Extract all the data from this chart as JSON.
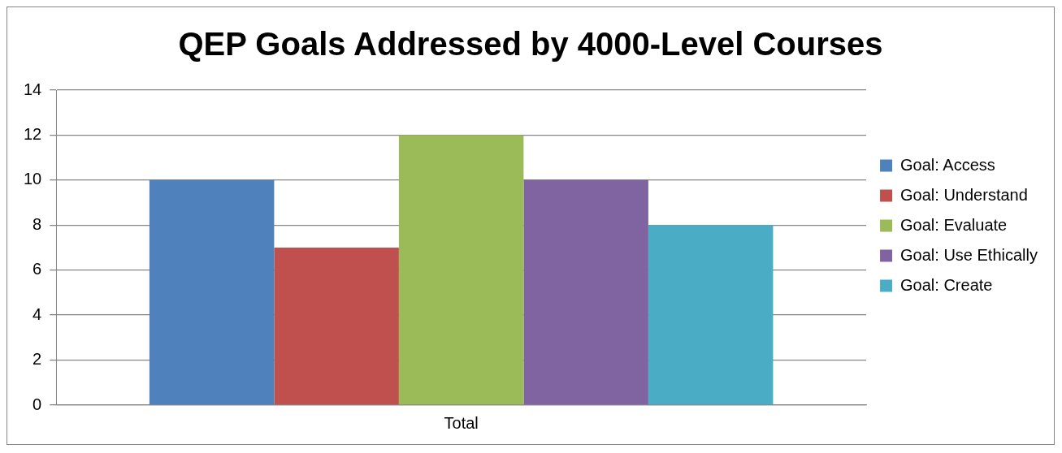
{
  "chart_data": {
    "type": "bar",
    "title": "QEP Goals Addressed by 4000-Level Courses",
    "categories": [
      "Total"
    ],
    "series": [
      {
        "name": "Goal: Access",
        "color": "#4f81bd",
        "values": [
          10
        ]
      },
      {
        "name": "Goal: Understand",
        "color": "#c0504d",
        "values": [
          7
        ]
      },
      {
        "name": "Goal: Evaluate",
        "color": "#9bbb59",
        "values": [
          12
        ]
      },
      {
        "name": "Goal: Use Ethically",
        "color": "#8064a2",
        "values": [
          10
        ]
      },
      {
        "name": "Goal: Create",
        "color": "#4bacc6",
        "values": [
          8
        ]
      }
    ],
    "ylim": [
      0,
      14
    ],
    "yticks": [
      0,
      2,
      4,
      6,
      8,
      10,
      12,
      14
    ],
    "grid": "y",
    "legend": "right"
  }
}
